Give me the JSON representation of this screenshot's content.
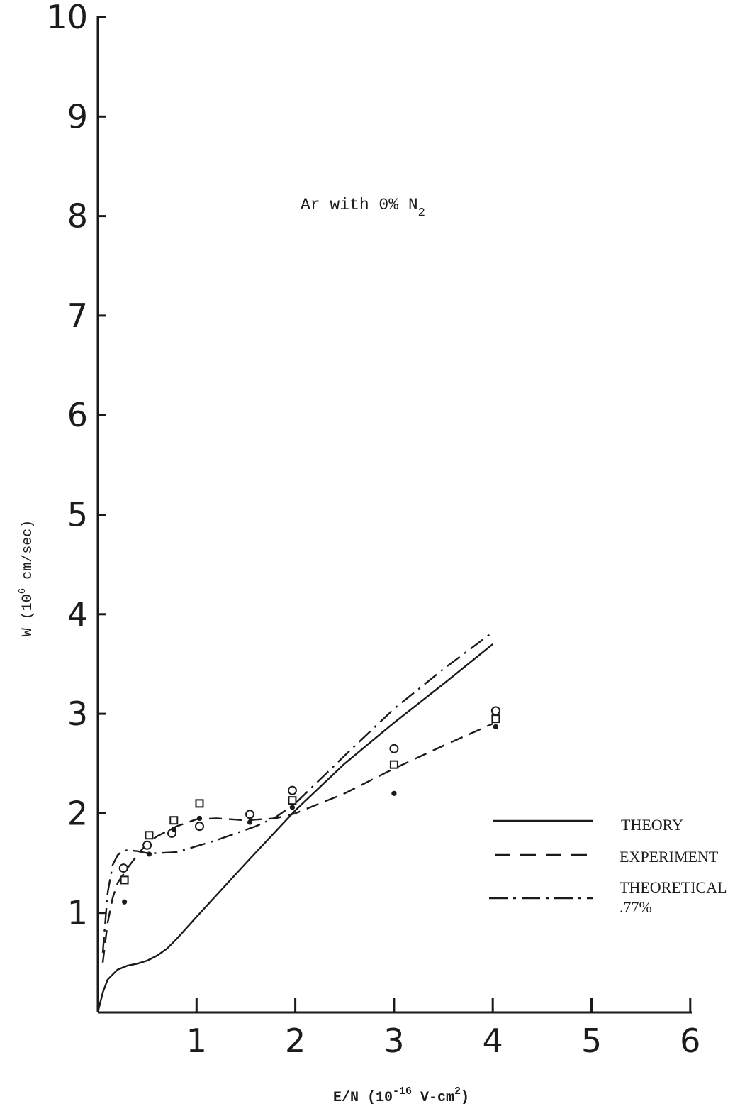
{
  "chart_data": {
    "type": "line",
    "title": "Ar with 0% N",
    "title_subscript": "2",
    "xlabel": {
      "prefix": "E/N (10",
      "exp": "-16",
      "mid": " V-cm",
      "sq": "2",
      "suffix": ")"
    },
    "ylabel": {
      "prefix": "W (10",
      "exp": "6",
      "suffix": " cm/sec)"
    },
    "xlim": [
      0,
      6
    ],
    "ylim": [
      0,
      10
    ],
    "x_ticks": [
      1,
      2,
      3,
      4,
      5,
      6
    ],
    "x_tick_labels": [
      "1",
      "2",
      "3",
      "4",
      "5",
      "6"
    ],
    "y_ticks": [
      1,
      2,
      3,
      4,
      5,
      6,
      7,
      8,
      9,
      10
    ],
    "y_tick_labels": [
      "1",
      "2",
      "3",
      "4",
      "5",
      "6",
      "7",
      "8",
      "9",
      "10"
    ],
    "grid": false,
    "legend_position": "right",
    "legend": [
      {
        "label": "THEORY",
        "style": "solid"
      },
      {
        "label": "EXPERIMENT",
        "style": "dashed"
      },
      {
        "label": "THEORETICAL",
        "label2": ".77%",
        "style": "dashdot"
      }
    ],
    "series": [
      {
        "style": "solid",
        "x": [
          0,
          0.05,
          0.1,
          0.2,
          0.3,
          0.4,
          0.5,
          0.6,
          0.7,
          0.8,
          1.0,
          1.5,
          2.0,
          2.5,
          3.0,
          3.5,
          4.0
        ],
        "y": [
          0,
          0.2,
          0.33,
          0.43,
          0.47,
          0.49,
          0.52,
          0.57,
          0.64,
          0.74,
          0.96,
          1.5,
          2.03,
          2.5,
          2.91,
          3.3,
          3.7
        ]
      },
      {
        "style": "dashed",
        "x": [
          0.05,
          0.1,
          0.15,
          0.2,
          0.3,
          0.4,
          0.5,
          0.6,
          0.8,
          1.0,
          1.2,
          1.5,
          1.8,
          2.0,
          2.5,
          3.0,
          3.5,
          4.0
        ],
        "y": [
          0.5,
          0.9,
          1.15,
          1.3,
          1.45,
          1.58,
          1.7,
          1.77,
          1.87,
          1.94,
          1.95,
          1.93,
          1.95,
          2.0,
          2.2,
          2.45,
          2.68,
          2.9
        ]
      },
      {
        "style": "dashdot",
        "x": [
          0.05,
          0.1,
          0.15,
          0.2,
          0.25,
          0.3,
          0.4,
          0.5,
          0.6,
          0.8,
          1.0,
          1.2,
          1.4,
          1.6,
          1.8,
          2.0,
          2.5,
          3.0,
          3.5,
          4.0
        ],
        "y": [
          0.6,
          1.2,
          1.48,
          1.58,
          1.62,
          1.63,
          1.62,
          1.6,
          1.6,
          1.61,
          1.67,
          1.73,
          1.8,
          1.87,
          1.96,
          2.1,
          2.58,
          3.05,
          3.45,
          3.82
        ]
      }
    ],
    "points": {
      "circle": [
        {
          "x": 0.26,
          "y": 1.45
        },
        {
          "x": 0.5,
          "y": 1.68
        },
        {
          "x": 0.75,
          "y": 1.8
        },
        {
          "x": 1.03,
          "y": 1.87
        },
        {
          "x": 1.54,
          "y": 1.99
        },
        {
          "x": 1.97,
          "y": 2.23
        },
        {
          "x": 3.0,
          "y": 2.65
        },
        {
          "x": 4.03,
          "y": 3.03
        }
      ],
      "square": [
        {
          "x": 0.27,
          "y": 1.33
        },
        {
          "x": 0.52,
          "y": 1.78
        },
        {
          "x": 0.77,
          "y": 1.93
        },
        {
          "x": 1.03,
          "y": 2.1
        },
        {
          "x": 1.97,
          "y": 2.13
        },
        {
          "x": 3.0,
          "y": 2.49
        },
        {
          "x": 4.03,
          "y": 2.95
        }
      ],
      "dot": [
        {
          "x": 0.27,
          "y": 1.11
        },
        {
          "x": 0.52,
          "y": 1.59
        },
        {
          "x": 0.77,
          "y": 1.84
        },
        {
          "x": 1.03,
          "y": 1.95
        },
        {
          "x": 1.54,
          "y": 1.91
        },
        {
          "x": 1.97,
          "y": 2.06
        },
        {
          "x": 3.0,
          "y": 2.2
        },
        {
          "x": 4.03,
          "y": 2.87
        }
      ]
    }
  }
}
